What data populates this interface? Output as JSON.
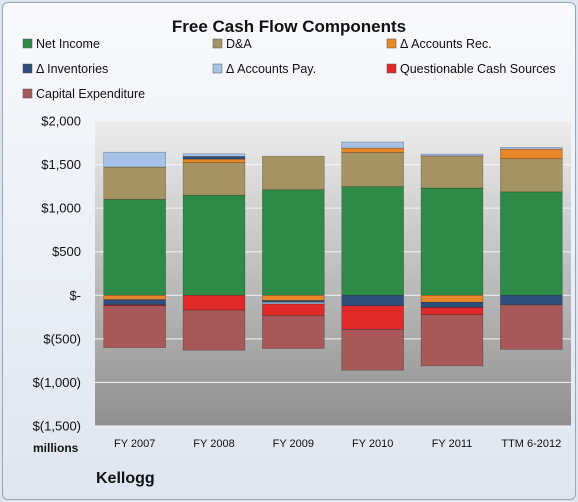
{
  "chart_data": {
    "type": "bar",
    "stacked": true,
    "title": "Free Cash Flow Components",
    "categories": [
      "FY 2007",
      "FY 2008",
      "FY 2009",
      "FY 2010",
      "FY 2011",
      "TTM 6-2012"
    ],
    "ylim": [
      -1500,
      2000
    ],
    "yticks": [
      2000,
      1500,
      1000,
      500,
      0,
      -500,
      -1000,
      -1500
    ],
    "ytick_labels": [
      "$2,000",
      "$1,500",
      "$1,000",
      "$500",
      "$-",
      "$(500)",
      "$(1,000)",
      "$(1,500)"
    ],
    "units_label": "millions",
    "company": "Kellogg",
    "grid": true,
    "legend_position": "top",
    "series": [
      {
        "name": "Net Income",
        "color": "#2e8b47",
        "values": [
          1100,
          1148,
          1212,
          1247,
          1231,
          1187
        ]
      },
      {
        "name": "D&A",
        "color": "#a69363",
        "values": [
          372,
          375,
          384,
          392,
          369,
          380
        ]
      },
      {
        "name": "Δ Accounts Rec.",
        "color": "#e8862a",
        "values": [
          -50,
          40,
          -60,
          50,
          -80,
          110
        ]
      },
      {
        "name": "Δ Inventories",
        "color": "#2f4e7a",
        "values": [
          -60,
          30,
          -20,
          -120,
          -60,
          -110
        ]
      },
      {
        "name": "Δ Accounts Pay.",
        "color": "#a6c2e6",
        "values": [
          170,
          30,
          -20,
          70,
          20,
          20
        ]
      },
      {
        "name": "Questionable Cash Sources",
        "color": "#e02a2a",
        "values": [
          -10,
          -170,
          -130,
          -270,
          -80,
          0
        ]
      },
      {
        "name": "Capital Expenditure",
        "color": "#a85858",
        "values": [
          -480,
          -460,
          -380,
          -470,
          -590,
          -510
        ]
      }
    ]
  }
}
